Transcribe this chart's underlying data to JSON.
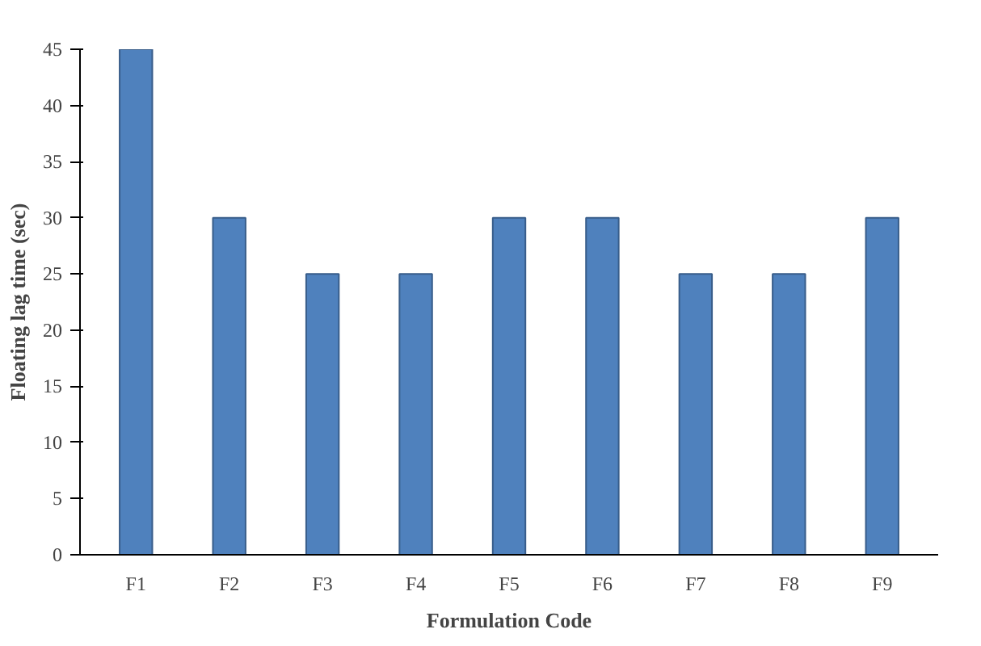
{
  "chart_data": {
    "type": "bar",
    "xlabel": "Formulation Code",
    "ylabel": "Floating lag time (sec)",
    "categories": [
      "F1",
      "F2",
      "F3",
      "F4",
      "F5",
      "F6",
      "F7",
      "F8",
      "F9"
    ],
    "values": [
      45,
      30,
      25,
      25,
      30,
      30,
      25,
      25,
      30
    ],
    "color": "#4f81bd",
    "ylim": [
      0,
      45
    ],
    "yticks": [
      0,
      5,
      10,
      15,
      20,
      25,
      30,
      35,
      40,
      45
    ],
    "grid": false
  }
}
